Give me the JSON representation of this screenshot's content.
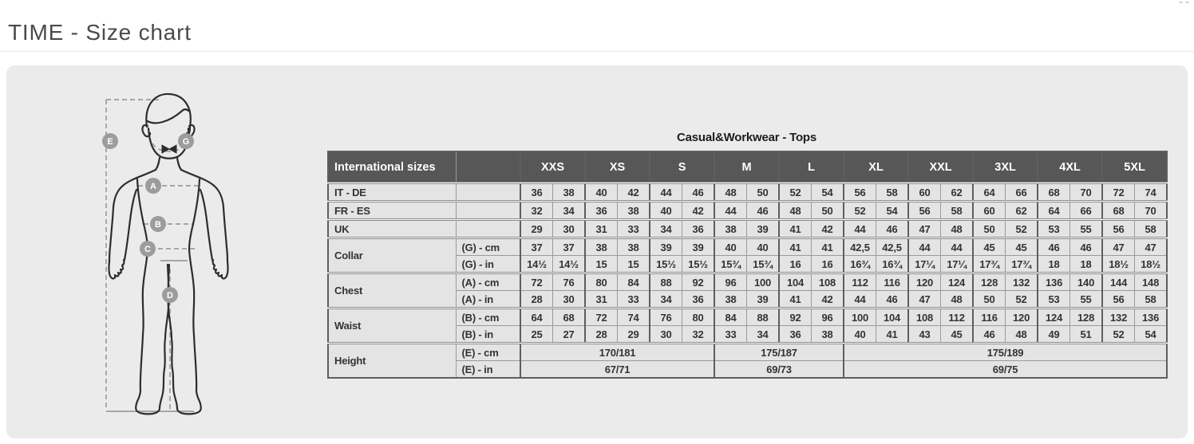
{
  "page": {
    "title": "TIME - Size chart"
  },
  "table": {
    "title": "Casual&Workwear - Tops",
    "corner_label": "International sizes",
    "sizes": [
      "XXS",
      "XS",
      "S",
      "M",
      "L",
      "XL",
      "XXL",
      "3XL",
      "4XL",
      "5XL"
    ],
    "groups": [
      {
        "label": "IT - DE",
        "rows": [
          {
            "unit": "",
            "values": [
              "36",
              "38",
              "40",
              "42",
              "44",
              "46",
              "48",
              "50",
              "52",
              "54",
              "56",
              "58",
              "60",
              "62",
              "64",
              "66",
              "68",
              "70",
              "72",
              "74"
            ]
          }
        ]
      },
      {
        "label": "FR - ES",
        "rows": [
          {
            "unit": "",
            "values": [
              "32",
              "34",
              "36",
              "38",
              "40",
              "42",
              "44",
              "46",
              "48",
              "50",
              "52",
              "54",
              "56",
              "58",
              "60",
              "62",
              "64",
              "66",
              "68",
              "70"
            ]
          }
        ]
      },
      {
        "label": "UK",
        "rows": [
          {
            "unit": "",
            "values": [
              "29",
              "30",
              "31",
              "33",
              "34",
              "36",
              "38",
              "39",
              "41",
              "42",
              "44",
              "46",
              "47",
              "48",
              "50",
              "52",
              "53",
              "55",
              "56",
              "58"
            ]
          }
        ]
      },
      {
        "label": "Collar",
        "rows": [
          {
            "unit": "(G) - cm",
            "values": [
              "37",
              "37",
              "38",
              "38",
              "39",
              "39",
              "40",
              "40",
              "41",
              "41",
              "42,5",
              "42,5",
              "44",
              "44",
              "45",
              "45",
              "46",
              "46",
              "47",
              "47"
            ]
          },
          {
            "unit": "(G) - in",
            "values": [
              "14½",
              "14½",
              "15",
              "15",
              "15½",
              "15½",
              "15¾",
              "15¾",
              "16",
              "16",
              "16¾",
              "16¾",
              "17¼",
              "17¼",
              "17¾",
              "17¾",
              "18",
              "18",
              "18½",
              "18½"
            ]
          }
        ]
      },
      {
        "label": "Chest",
        "rows": [
          {
            "unit": "(A) - cm",
            "values": [
              "72",
              "76",
              "80",
              "84",
              "88",
              "92",
              "96",
              "100",
              "104",
              "108",
              "112",
              "116",
              "120",
              "124",
              "128",
              "132",
              "136",
              "140",
              "144",
              "148"
            ]
          },
          {
            "unit": "(A) - in",
            "values": [
              "28",
              "30",
              "31",
              "33",
              "34",
              "36",
              "38",
              "39",
              "41",
              "42",
              "44",
              "46",
              "47",
              "48",
              "50",
              "52",
              "53",
              "55",
              "56",
              "58"
            ]
          }
        ]
      },
      {
        "label": "Waist",
        "rows": [
          {
            "unit": "(B) - cm",
            "values": [
              "64",
              "68",
              "72",
              "74",
              "76",
              "80",
              "84",
              "88",
              "92",
              "96",
              "100",
              "104",
              "108",
              "112",
              "116",
              "120",
              "124",
              "128",
              "132",
              "136"
            ]
          },
          {
            "unit": "(B) - in",
            "values": [
              "25",
              "27",
              "28",
              "29",
              "30",
              "32",
              "33",
              "34",
              "36",
              "38",
              "40",
              "41",
              "43",
              "45",
              "46",
              "48",
              "49",
              "51",
              "52",
              "54"
            ]
          }
        ]
      },
      {
        "label": "Height",
        "rows": [
          {
            "unit": "(E) - cm",
            "spans": [
              {
                "text": "170/181",
                "cols": 6
              },
              {
                "text": "175/187",
                "cols": 4
              },
              {
                "text": "175/189",
                "cols": 10
              }
            ]
          },
          {
            "unit": "(E) - in",
            "spans": [
              {
                "text": "67/71",
                "cols": 6
              },
              {
                "text": "69/73",
                "cols": 4
              },
              {
                "text": "69/75",
                "cols": 10
              }
            ]
          }
        ]
      }
    ]
  },
  "figure": {
    "badges": [
      "E",
      "G",
      "A",
      "B",
      "C",
      "D"
    ]
  },
  "colors": {
    "panel_bg": "#ebebeb",
    "table_header_bg": "#575757",
    "table_cell_bg": "#e4e4e4",
    "table_border": "#9a9a9a",
    "badge_gray": "#9c9c9c"
  }
}
